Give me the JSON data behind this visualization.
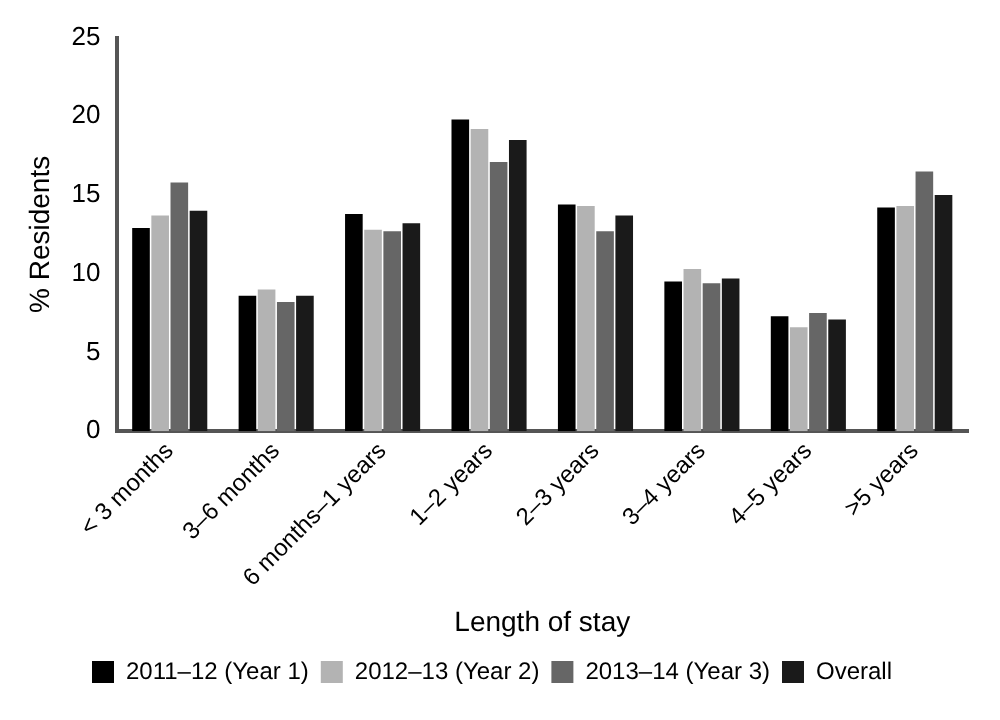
{
  "chart_data": {
    "type": "bar",
    "xlabel": "Length of stay",
    "ylabel": "% Residents",
    "categories": [
      "< 3 months",
      "3–6 months",
      "6 months–1 years",
      "1–2 years",
      "2–3 years",
      "3–4 years",
      "4–5 years",
      ">5 years"
    ],
    "series": [
      {
        "name": "2011–12 (Year 1)",
        "color": "#000000",
        "values": [
          12.9,
          8.6,
          13.8,
          19.8,
          14.4,
          9.5,
          7.3,
          14.2
        ]
      },
      {
        "name": "2012–13 (Year 2)",
        "color": "#b3b3b3",
        "values": [
          13.7,
          9.0,
          12.8,
          19.2,
          14.3,
          10.3,
          6.6,
          14.3
        ]
      },
      {
        "name": "2013–14 (Year 3)",
        "color": "#666666",
        "values": [
          15.8,
          8.2,
          12.7,
          17.1,
          12.7,
          9.4,
          7.5,
          16.5
        ]
      },
      {
        "name": "Overall",
        "color": "#1a1a1a",
        "values": [
          14.0,
          8.6,
          13.2,
          18.5,
          13.7,
          9.7,
          7.1,
          15.0
        ]
      }
    ],
    "ylim": [
      0,
      25
    ],
    "yticks": [
      0,
      5,
      10,
      15,
      20,
      25
    ],
    "grid": false,
    "legend": "bottom"
  }
}
